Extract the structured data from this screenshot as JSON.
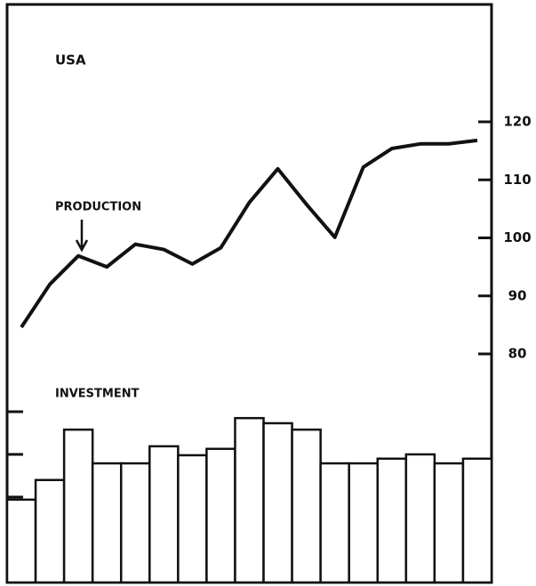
{
  "chart_data": {
    "type": "combo",
    "title": "USA",
    "categories": [
      null,
      null,
      null,
      null,
      null,
      null,
      null,
      null,
      null,
      null,
      null,
      null,
      null,
      null,
      null,
      null,
      null
    ],
    "series": [
      {
        "name": "PRODUCTION",
        "type": "line",
        "color": "#111111",
        "values": [
          84.6,
          92.0,
          96.9,
          95.0,
          98.9,
          98.0,
          95.5,
          98.3,
          106.1,
          111.9,
          105.8,
          100.1,
          112.2,
          115.4,
          116.2,
          116.2,
          116.8
        ]
      },
      {
        "name": "INVESTMENT",
        "type": "bar",
        "axis": "y2",
        "color": "#ffffff",
        "values": [
          1.94,
          2.4,
          3.58,
          2.79,
          2.79,
          3.19,
          2.98,
          3.13,
          3.85,
          3.73,
          3.58,
          2.79,
          2.79,
          2.9,
          3.0,
          2.79,
          2.9
        ]
      }
    ],
    "ylim": [
      80,
      120
    ],
    "yticks": [
      80,
      90,
      100,
      110,
      120
    ],
    "y2lim": [
      0,
      4
    ],
    "y2ticks": [
      1,
      2,
      3,
      4
    ]
  }
}
